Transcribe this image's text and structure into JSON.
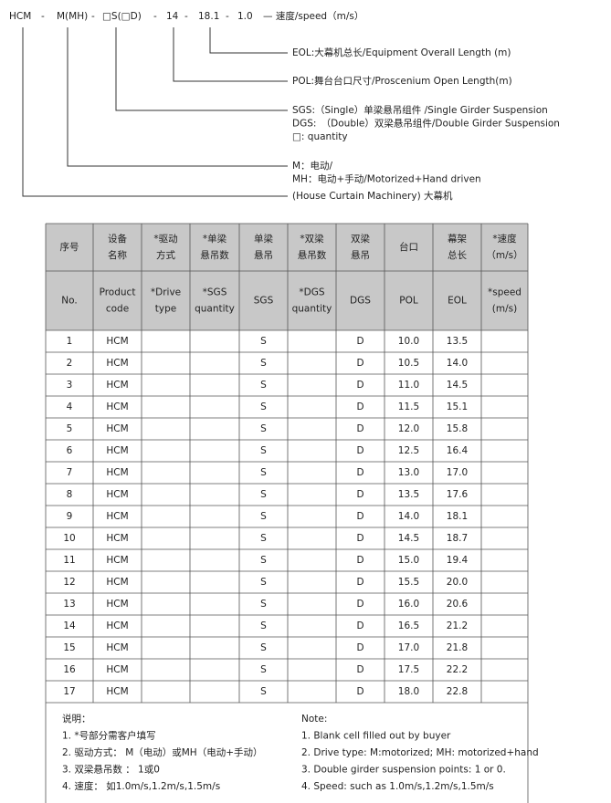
{
  "code_diagram": {
    "code_parts": [
      "HCM",
      "-",
      "M(MH)",
      "-",
      "□S(□D)",
      "-",
      "14",
      "-",
      "18.1",
      "-",
      "1.0"
    ],
    "code_suffix": "— 速度/speed（m/s）",
    "annotations": [
      [
        "EOL:大幕机总长/Equipment Overall Length (m)"
      ],
      [
        "POL:舞台台口尺寸/Proscenium Open Length(m)"
      ],
      [
        "SGS:（Single）单梁悬吊组件 /Single Girder Suspension",
        "DGS:　（Double）双梁悬吊组件/Double Girder Suspension",
        "□: quantity"
      ],
      [
        "M：电动/",
        "MH：电动+手动/Motorized+Hand driven"
      ],
      [
        "(House Curtain Machinery) 大幕机"
      ]
    ]
  },
  "table": {
    "header_cn": [
      [
        "序号"
      ],
      [
        "设备",
        "名称"
      ],
      [
        "*驱动",
        "方式"
      ],
      [
        "*单梁",
        "悬吊数"
      ],
      [
        "单梁",
        "悬吊"
      ],
      [
        "*双梁",
        "悬吊数"
      ],
      [
        "双梁",
        "悬吊"
      ],
      [
        "台口"
      ],
      [
        "幕架",
        "总长"
      ],
      [
        "*速度",
        "（m/s）"
      ]
    ],
    "header_en": [
      [
        "No."
      ],
      [
        "Product",
        "code"
      ],
      [
        "*Drive",
        "type"
      ],
      [
        "*SGS",
        "quantity"
      ],
      [
        "SGS"
      ],
      [
        "*DGS",
        "quantity"
      ],
      [
        "DGS"
      ],
      [
        "POL"
      ],
      [
        "EOL"
      ],
      [
        "*speed",
        "(m/s)"
      ]
    ],
    "rows": [
      {
        "no": "1",
        "code": "HCM",
        "sgs": "S",
        "dgs": "D",
        "pol": "10.0",
        "eol": "13.5"
      },
      {
        "no": "2",
        "code": "HCM",
        "sgs": "S",
        "dgs": "D",
        "pol": "10.5",
        "eol": "14.0"
      },
      {
        "no": "3",
        "code": "HCM",
        "sgs": "S",
        "dgs": "D",
        "pol": "11.0",
        "eol": "14.5"
      },
      {
        "no": "4",
        "code": "HCM",
        "sgs": "S",
        "dgs": "D",
        "pol": "11.5",
        "eol": "15.1"
      },
      {
        "no": "5",
        "code": "HCM",
        "sgs": "S",
        "dgs": "D",
        "pol": "12.0",
        "eol": "15.8"
      },
      {
        "no": "6",
        "code": "HCM",
        "sgs": "S",
        "dgs": "D",
        "pol": "12.5",
        "eol": "16.4"
      },
      {
        "no": "7",
        "code": "HCM",
        "sgs": "S",
        "dgs": "D",
        "pol": "13.0",
        "eol": "17.0"
      },
      {
        "no": "8",
        "code": "HCM",
        "sgs": "S",
        "dgs": "D",
        "pol": "13.5",
        "eol": "17.6"
      },
      {
        "no": "9",
        "code": "HCM",
        "sgs": "S",
        "dgs": "D",
        "pol": "14.0",
        "eol": "18.1"
      },
      {
        "no": "10",
        "code": "HCM",
        "sgs": "S",
        "dgs": "D",
        "pol": "14.5",
        "eol": "18.7"
      },
      {
        "no": "11",
        "code": "HCM",
        "sgs": "S",
        "dgs": "D",
        "pol": "15.0",
        "eol": "19.4"
      },
      {
        "no": "12",
        "code": "HCM",
        "sgs": "S",
        "dgs": "D",
        "pol": "15.5",
        "eol": "20.0"
      },
      {
        "no": "13",
        "code": "HCM",
        "sgs": "S",
        "dgs": "D",
        "pol": "16.0",
        "eol": "20.6"
      },
      {
        "no": "14",
        "code": "HCM",
        "sgs": "S",
        "dgs": "D",
        "pol": "16.5",
        "eol": "21.2"
      },
      {
        "no": "15",
        "code": "HCM",
        "sgs": "S",
        "dgs": "D",
        "pol": "17.0",
        "eol": "21.8"
      },
      {
        "no": "16",
        "code": "HCM",
        "sgs": "S",
        "dgs": "D",
        "pol": "17.5",
        "eol": "22.2"
      },
      {
        "no": "17",
        "code": "HCM",
        "sgs": "S",
        "dgs": "D",
        "pol": "18.0",
        "eol": "22.8"
      }
    ]
  },
  "notes": {
    "cn_title": "说明：",
    "cn": [
      "1. *号部分需客户填写",
      "2. 驱动方式： M（电动）或MH（电动+手动）",
      "3. 双梁悬吊数 ： 1或0",
      "4. 速度： 如1.0m/s,1.2m/s,1.5m/s"
    ],
    "en_title": "Note:",
    "en": [
      "1. Blank cell filled out by buyer",
      "2. Drive type: M:motorized; MH: motorized+hand",
      "3. Double girder suspension points: 1 or 0.",
      "4. Speed: such as 1.0m/s,1.2m/s,1.5m/s"
    ]
  }
}
